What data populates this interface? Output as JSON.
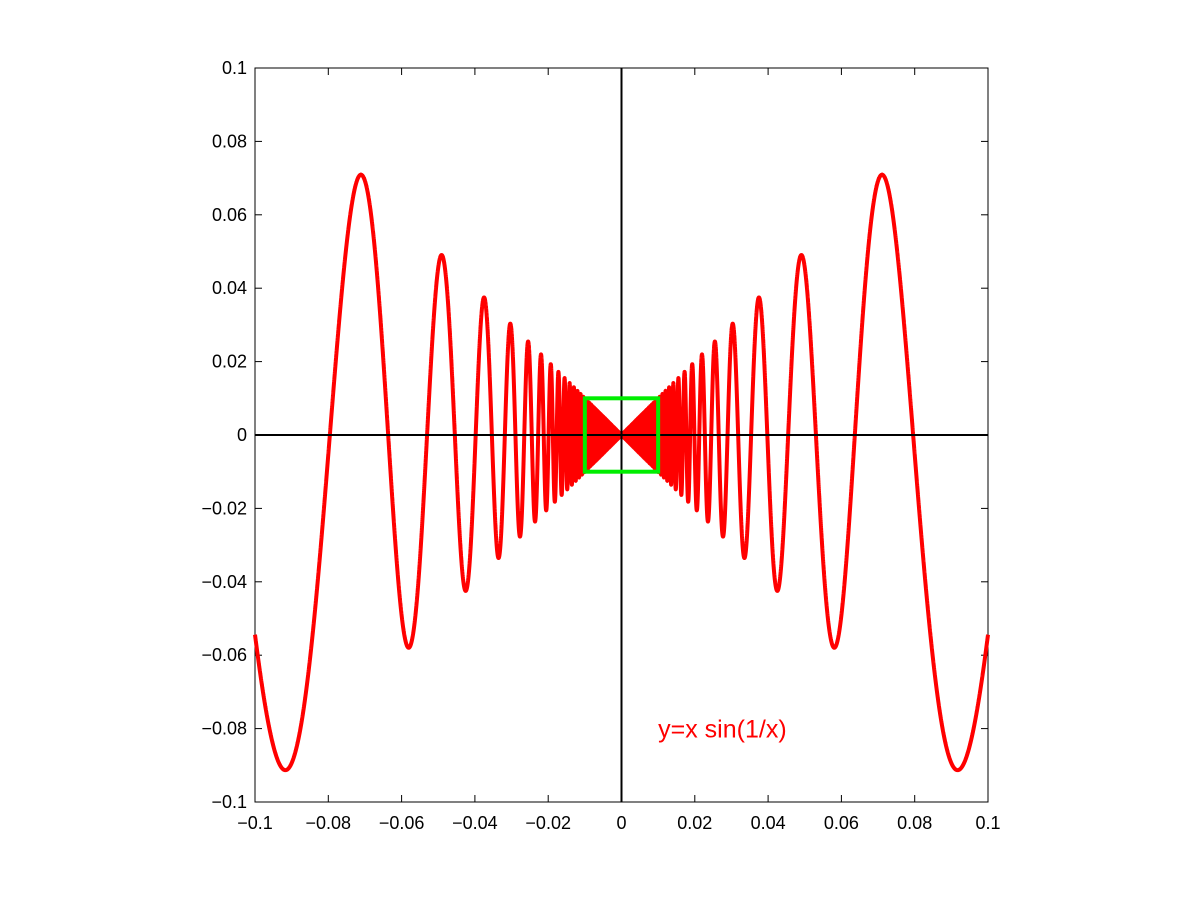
{
  "chart_data": {
    "type": "line",
    "title": "",
    "xlabel": "",
    "ylabel": "",
    "xlim": [
      -0.1,
      0.1
    ],
    "ylim": [
      -0.1,
      0.1
    ],
    "grid": false,
    "x_ticks": [
      -0.1,
      -0.08,
      -0.06,
      -0.04,
      -0.02,
      0,
      0.02,
      0.04,
      0.06,
      0.08,
      0.1
    ],
    "x_tick_labels": [
      "−0.1",
      "−0.08",
      "−0.06",
      "−0.04",
      "−0.02",
      "0",
      "0.02",
      "0.04",
      "0.06",
      "0.08",
      "0.1"
    ],
    "y_ticks": [
      0.1,
      0.08,
      0.06,
      0.04,
      0.02,
      0,
      -0.02,
      -0.04,
      -0.06,
      -0.08,
      -0.1
    ],
    "y_tick_labels": [
      "0.1",
      "0.08",
      "0.06",
      "0.04",
      "0.02",
      "0",
      "−0.02",
      "−0.04",
      "−0.06",
      "−0.08",
      "−0.1"
    ],
    "axes_lines": {
      "x_axis_at_y": 0,
      "y_axis_at_x": 0,
      "color": "#000000"
    },
    "series": [
      {
        "function": "y = x sin(1/x)",
        "color": "#ff0000",
        "x_range": [
          -0.1,
          0.1
        ],
        "key_points": [
          {
            "x": -0.1,
            "y": -0.054
          },
          {
            "x": -0.091,
            "y": -0.091
          },
          {
            "x": -0.08,
            "y": 0
          },
          {
            "x": -0.071,
            "y": 0.071
          },
          {
            "x": -0.058,
            "y": -0.058
          },
          {
            "x": -0.049,
            "y": 0.049
          },
          {
            "x": -0.042,
            "y": -0.042
          },
          {
            "x": -0.037,
            "y": 0.037
          },
          {
            "x": 0,
            "y": 0
          },
          {
            "x": 0.037,
            "y": 0.037
          },
          {
            "x": 0.042,
            "y": -0.042
          },
          {
            "x": 0.049,
            "y": 0.049
          },
          {
            "x": 0.058,
            "y": -0.058
          },
          {
            "x": 0.071,
            "y": 0.071
          },
          {
            "x": 0.08,
            "y": 0
          },
          {
            "x": 0.091,
            "y": -0.091
          },
          {
            "x": 0.1,
            "y": -0.054
          }
        ]
      }
    ],
    "highlight_box": {
      "x": [
        -0.01,
        0.01
      ],
      "y": [
        -0.01,
        0.01
      ],
      "color": "#00ee00"
    },
    "annotations": [
      {
        "text": "y=x sin(1/x)",
        "x": 0.01,
        "y": -0.08,
        "color": "#ff0000"
      }
    ]
  }
}
